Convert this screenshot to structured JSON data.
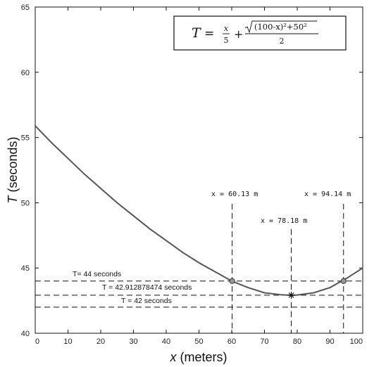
{
  "chart_data": {
    "type": "line",
    "xlabel_var": "x",
    "xlabel_unit": "(meters)",
    "ylabel_var": "T",
    "ylabel_unit": "(seconds)",
    "xlim": [
      0,
      100
    ],
    "ylim": [
      40,
      65
    ],
    "xticks": [
      0,
      10,
      20,
      30,
      40,
      50,
      60,
      70,
      80,
      90,
      100
    ],
    "yticks": [
      40,
      45,
      50,
      55,
      60,
      65
    ],
    "grid": false,
    "formula": {
      "lhs": "T",
      "eq": "=",
      "frac1_num": "x",
      "frac1_den": "5",
      "plus": "+",
      "sqrt_body": "(100-x)²+50²",
      "frac2_den": "2"
    },
    "series": [
      {
        "x": [
          0,
          5,
          10,
          15,
          20,
          25,
          30,
          35,
          40,
          45,
          50,
          55,
          60,
          65,
          70,
          75,
          78.18,
          80,
          85,
          90,
          95,
          100
        ],
        "y": [
          55.9,
          54.6,
          53.4,
          52.2,
          51.1,
          50.0,
          49.0,
          48.0,
          47.1,
          46.2,
          45.4,
          44.7,
          44.0,
          43.5,
          43.1,
          42.95,
          42.91,
          42.93,
          43.1,
          43.5,
          44.2,
          45.0
        ]
      }
    ],
    "hlines": [
      {
        "y": 44,
        "label": "T= 44 seconds"
      },
      {
        "y": 42.912878474,
        "label": "T = 42.912878474 seconds"
      },
      {
        "y": 42,
        "label": "T = 42 seconds"
      }
    ],
    "vlines": [
      {
        "x": 60.13,
        "label": "x = 60.13 m"
      },
      {
        "x": 78.18,
        "label": "x = 78.18 m"
      },
      {
        "x": 94.14,
        "label": "x = 94.14 m"
      }
    ],
    "points": [
      {
        "x": 60.13,
        "y": 44,
        "marker": "circle"
      },
      {
        "x": 94.14,
        "y": 44,
        "marker": "circle"
      },
      {
        "x": 78.18,
        "y": 42.912878474,
        "marker": "star"
      }
    ]
  }
}
